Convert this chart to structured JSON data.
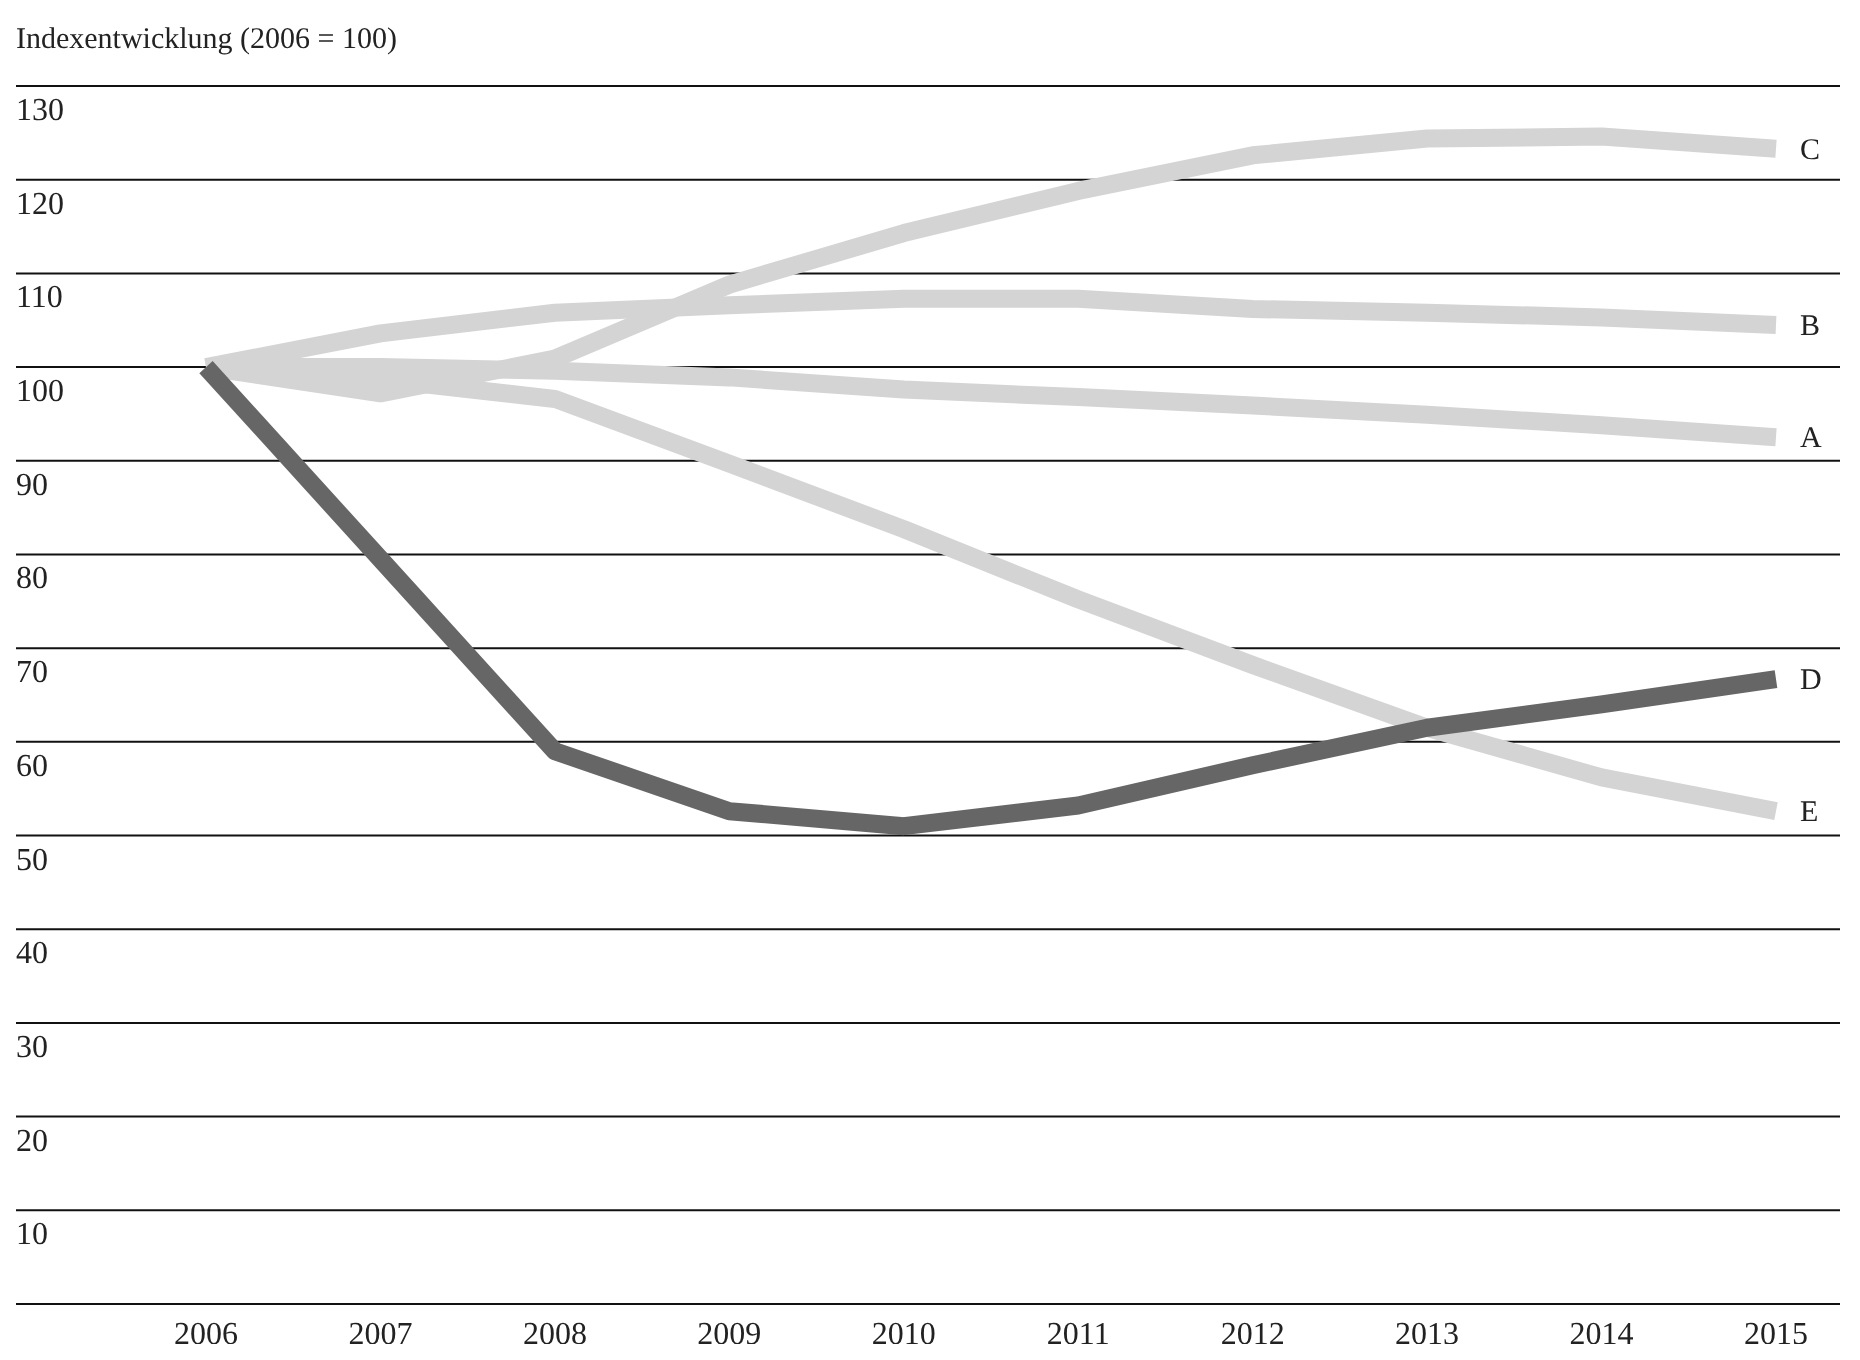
{
  "chart_data": {
    "type": "line",
    "ylabel": "Indexentwicklung (2006 = 100)",
    "categories": [
      "2006",
      "2007",
      "2008",
      "2009",
      "2010",
      "2011",
      "2012",
      "2013",
      "2014",
      "2015"
    ],
    "series": [
      {
        "name": "C",
        "color": "#d4d4d4",
        "values": [
          100,
          97.2,
          100.9,
          108.8,
          114.3,
          118.8,
          122.6,
          124.4,
          124.6,
          123.3
        ]
      },
      {
        "name": "B",
        "color": "#d4d4d4",
        "values": [
          100,
          103.6,
          105.8,
          106.6,
          107.3,
          107.3,
          106.2,
          105.8,
          105.3,
          104.5
        ]
      },
      {
        "name": "A",
        "color": "#d4d4d4",
        "values": [
          100,
          100,
          99.6,
          98.9,
          97.6,
          96.8,
          95.9,
          94.9,
          93.8,
          92.5
        ]
      },
      {
        "name": "E",
        "color": "#d4d4d4",
        "values": [
          100,
          98.7,
          96.6,
          89.7,
          82.7,
          75.2,
          68.2,
          61.5,
          56.2,
          52.6
        ]
      },
      {
        "name": "D",
        "color": "#666666",
        "values": [
          100,
          79.5,
          59,
          52.6,
          51,
          53.2,
          57.5,
          61.5,
          64,
          66.7
        ]
      }
    ],
    "ylim": [
      0,
      130
    ],
    "yticks": [
      {
        "value": 0,
        "label": null
      },
      10,
      20,
      30,
      40,
      50,
      60,
      70,
      80,
      90,
      100,
      110,
      120,
      130
    ],
    "grid": "y",
    "marker": "none",
    "line_style": "solid"
  }
}
